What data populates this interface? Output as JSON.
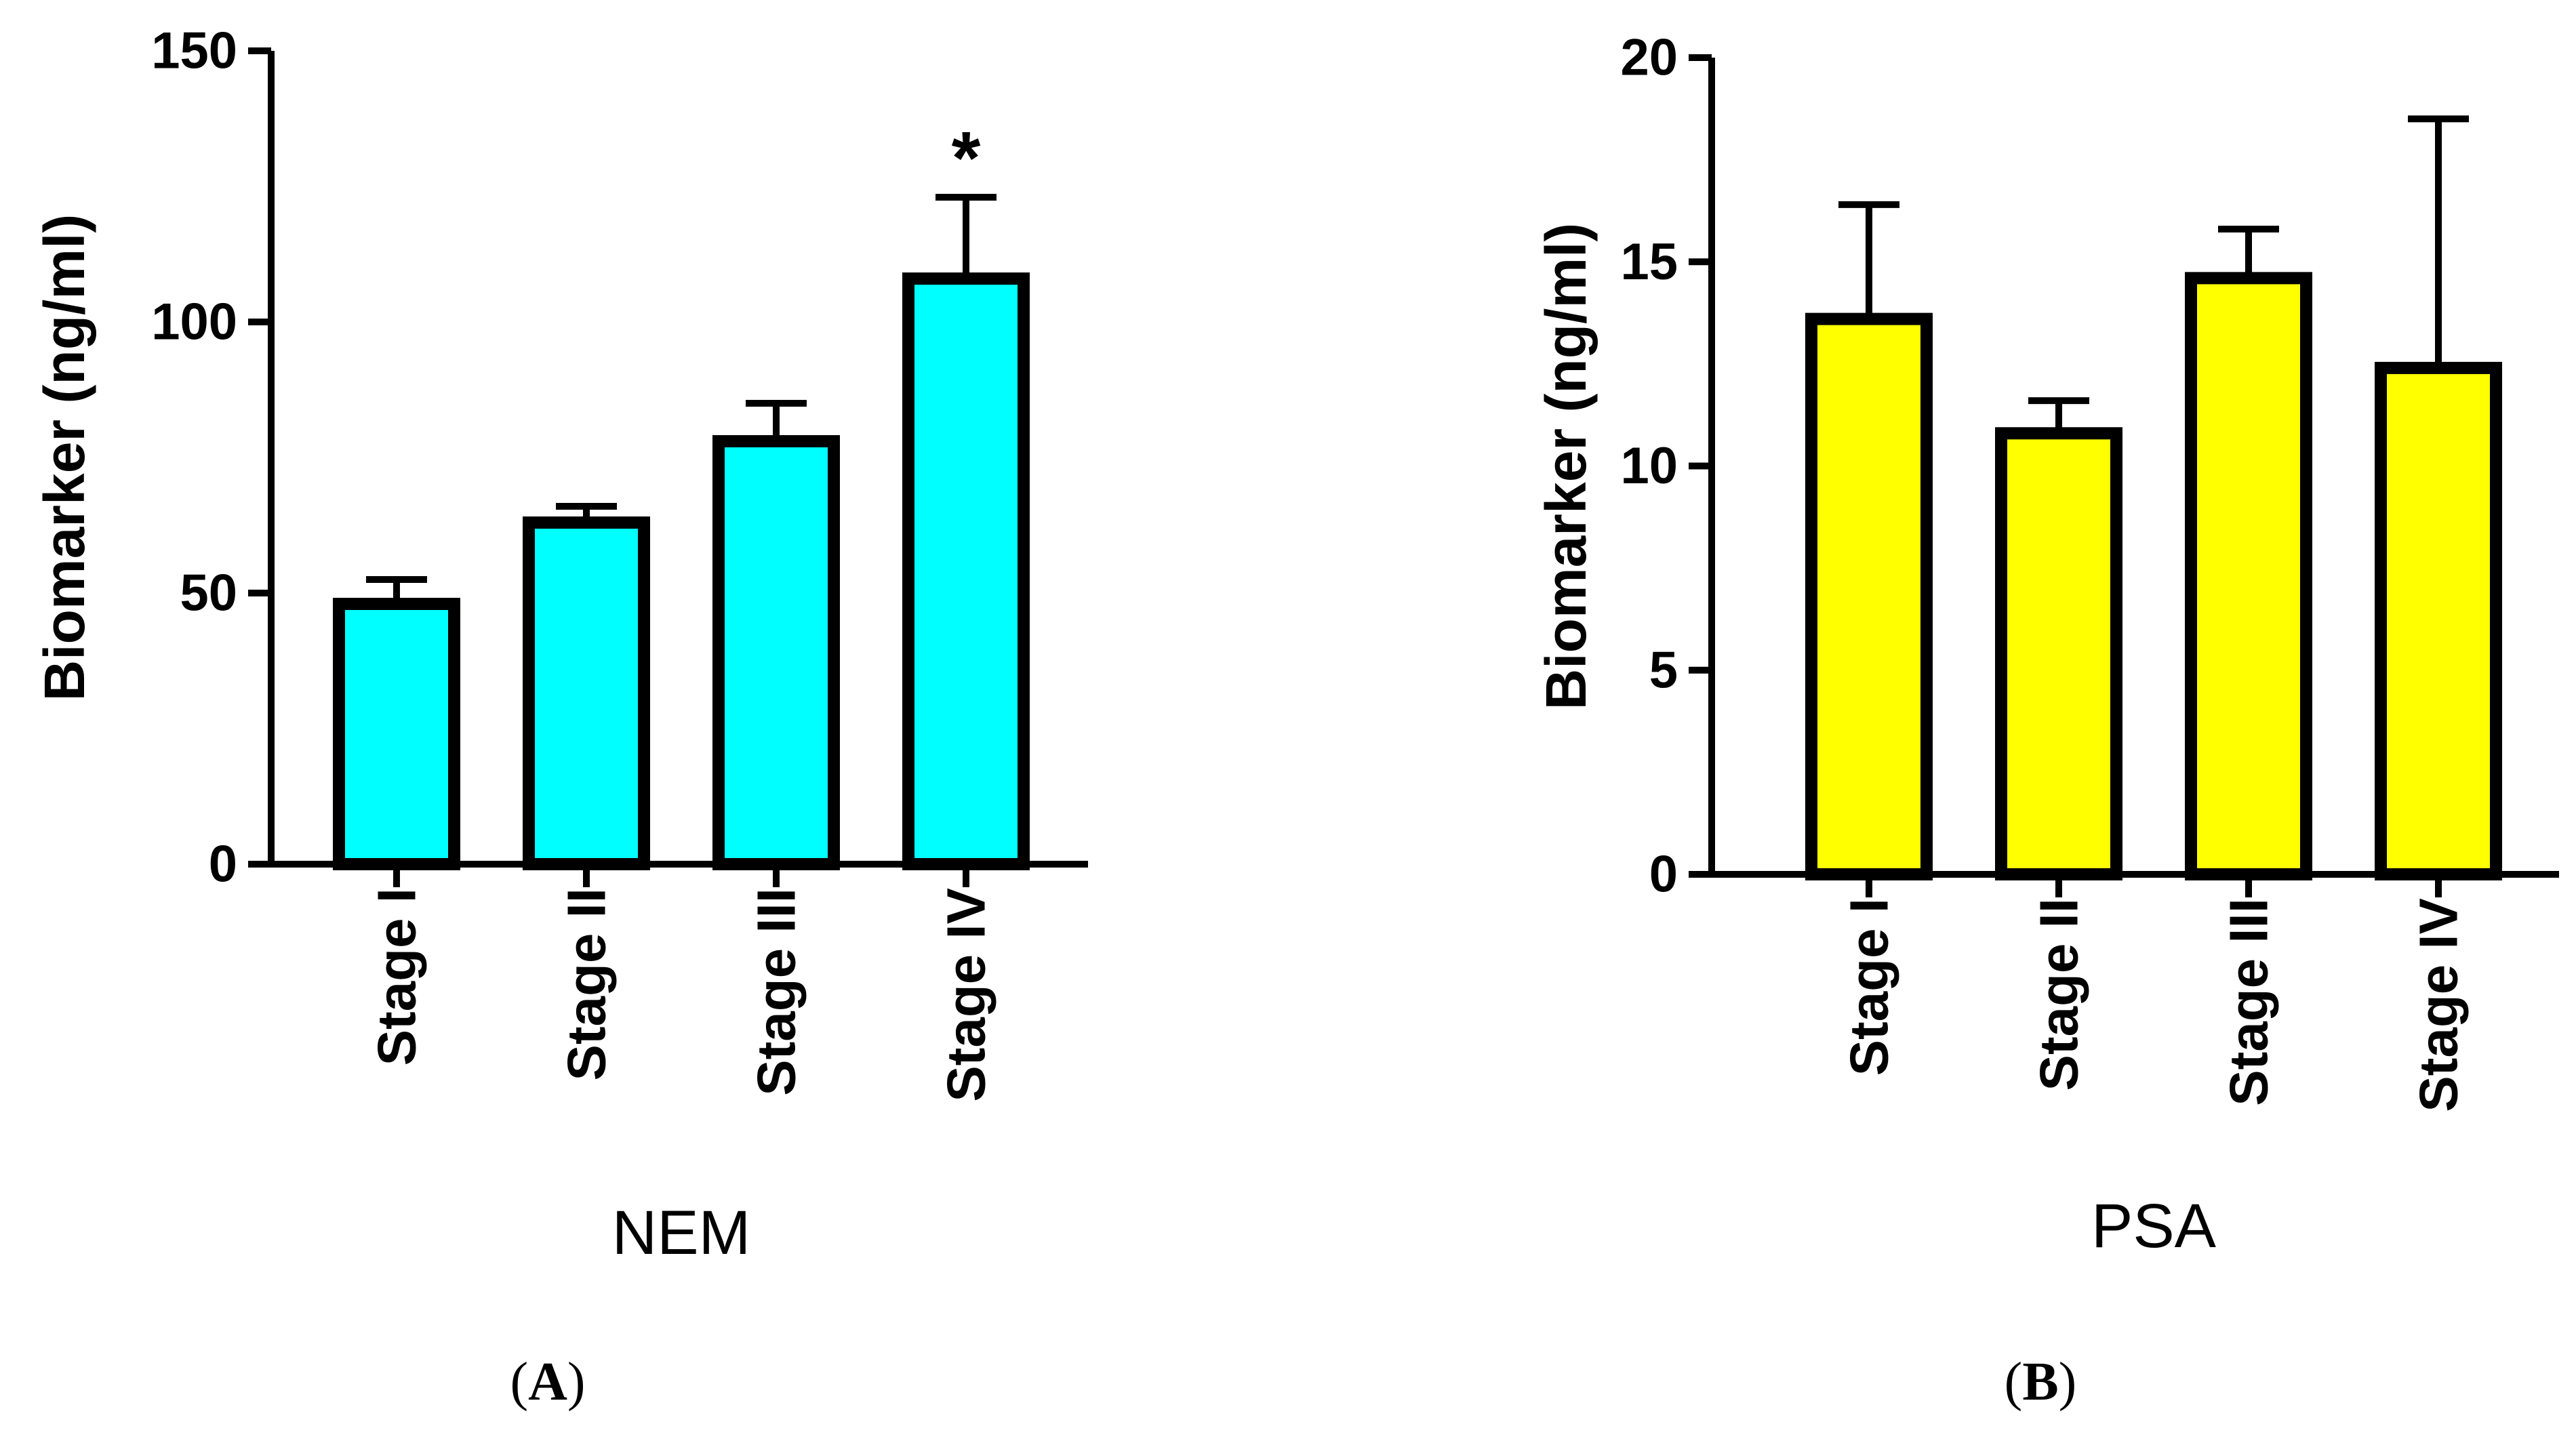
{
  "chart_data": [
    {
      "type": "bar",
      "panel_label": "A",
      "title": "",
      "xlabel": "NEM",
      "ylabel": "Biomarker (ng/ml)",
      "ylim": [
        0,
        150
      ],
      "yticks": [
        "0",
        "50",
        "100",
        "150"
      ],
      "categories": [
        "Stage I",
        "Stage II",
        "Stage III",
        "Stage IV"
      ],
      "values": [
        48,
        63,
        78,
        108
      ],
      "error_upper": [
        52.5,
        66,
        85,
        123
      ],
      "annotations": [
        {
          "category": "Stage IV",
          "text": "*"
        }
      ],
      "bar_color": "#00FFFF",
      "edge_color": "#000000",
      "grid": false
    },
    {
      "type": "bar",
      "panel_label": "B",
      "title": "",
      "xlabel": "PSA",
      "ylabel": "Biomarker (ng/ml)",
      "ylim": [
        0,
        20
      ],
      "yticks": [
        "0",
        "5",
        "10",
        "15",
        "20"
      ],
      "categories": [
        "Stage I",
        "Stage II",
        "Stage III",
        "Stage IV"
      ],
      "values": [
        13.6,
        10.8,
        14.6,
        12.4
      ],
      "error_upper": [
        16.4,
        11.6,
        15.8,
        18.5
      ],
      "annotations": [],
      "bar_color": "#FFFF00",
      "edge_color": "#000000",
      "grid": false
    }
  ]
}
